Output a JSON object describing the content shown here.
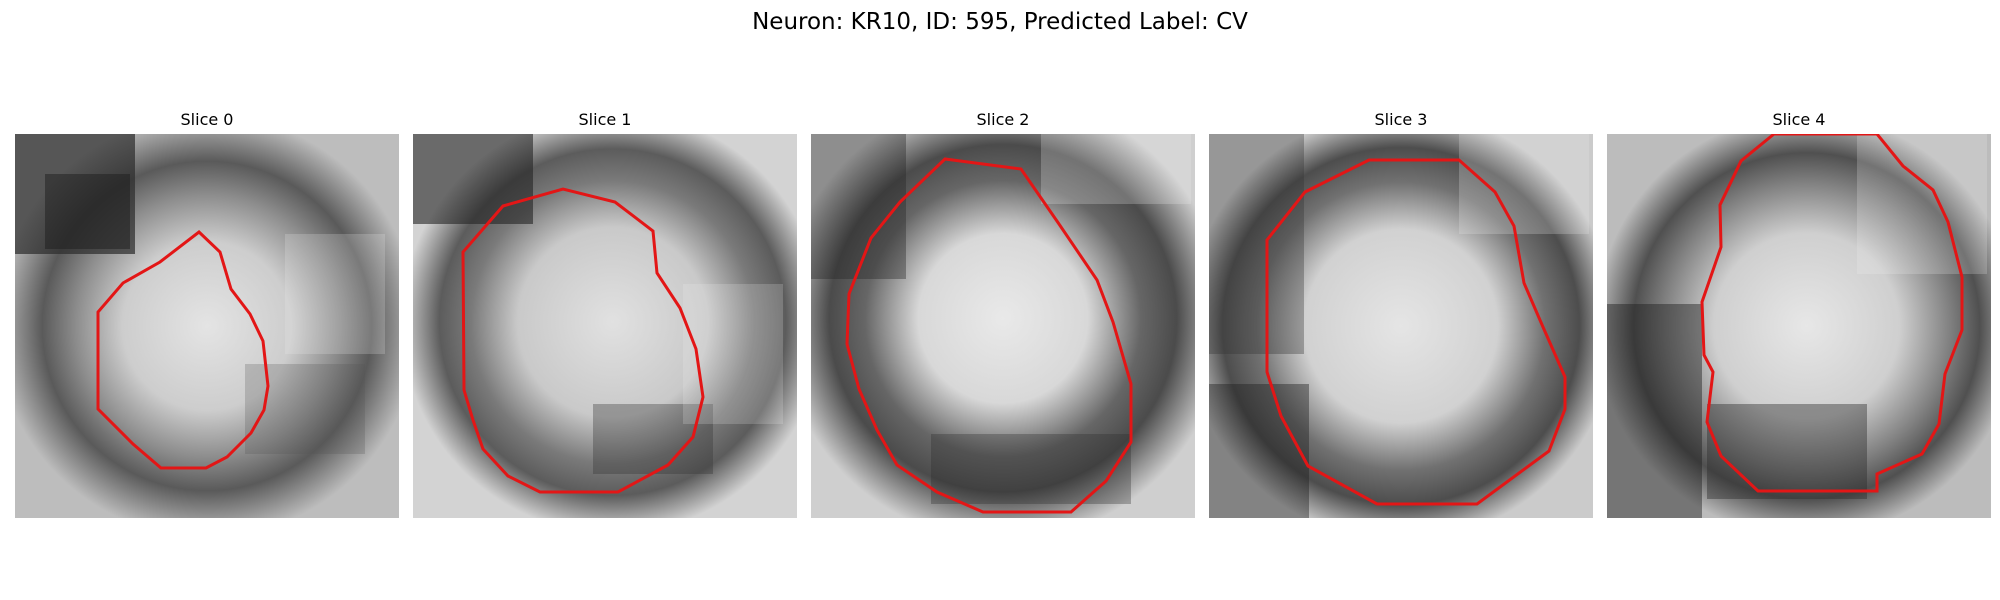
{
  "figure": {
    "title": "Neuron: KR10, ID: 595, Predicted Label: CV",
    "colors": {
      "contour": "#e31616"
    }
  },
  "slices": [
    {
      "title": "Slice 0"
    },
    {
      "title": "Slice 1"
    },
    {
      "title": "Slice 2"
    },
    {
      "title": "Slice 3"
    },
    {
      "title": "Slice 4"
    }
  ]
}
